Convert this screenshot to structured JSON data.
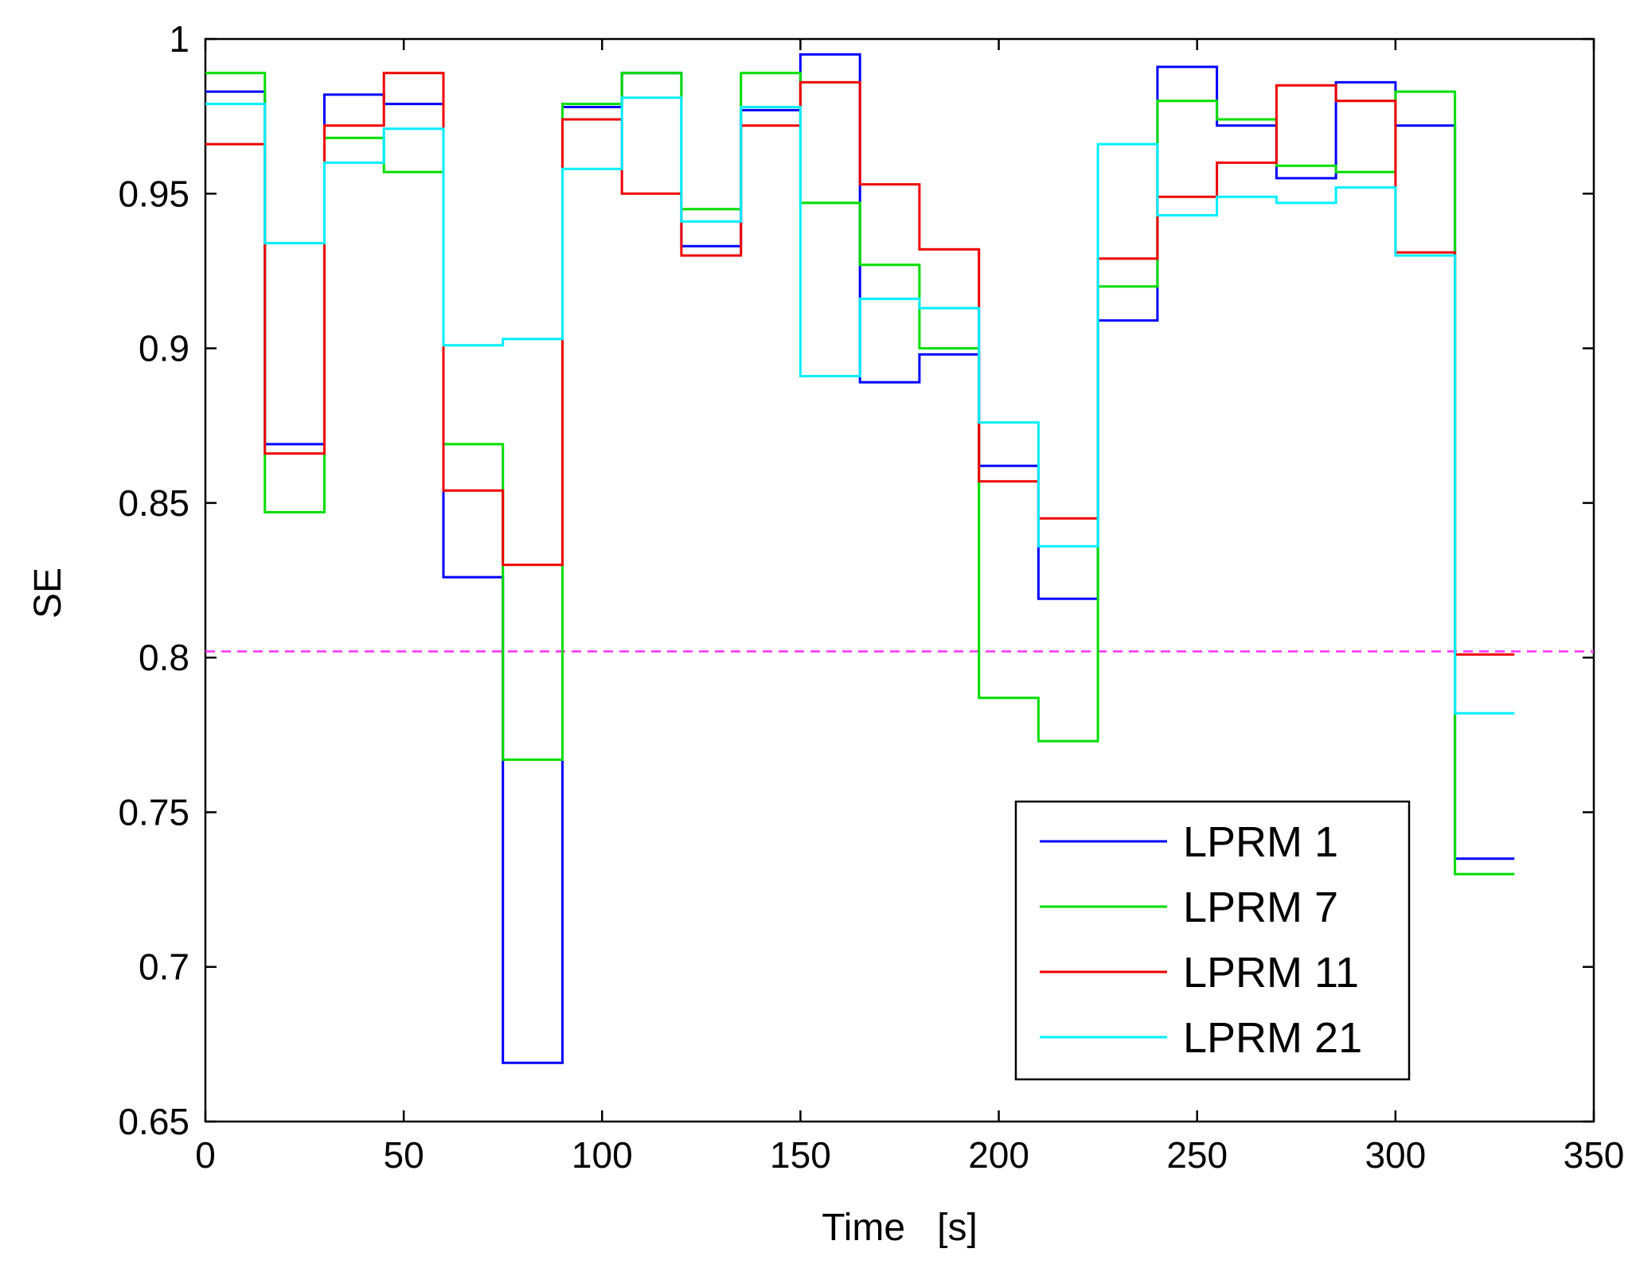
{
  "chart_data": {
    "type": "line",
    "step": true,
    "title": "",
    "xlabel": "Time   [s]",
    "ylabel": "SE",
    "xlim": [
      0,
      350
    ],
    "ylim": [
      0.65,
      1
    ],
    "xticks": [
      0,
      50,
      100,
      150,
      200,
      250,
      300,
      350
    ],
    "xtick_labels": [
      "0",
      "50",
      "100",
      "150",
      "200",
      "250",
      "300",
      "350"
    ],
    "yticks": [
      0.65,
      0.7,
      0.75,
      0.8,
      0.85,
      0.9,
      0.95,
      1
    ],
    "ytick_labels": [
      "0.65",
      "0.7",
      "0.75",
      "0.8",
      "0.85",
      "0.9",
      "0.95",
      "1"
    ],
    "grid": false,
    "legend_position": "bottom-right",
    "x_edges": [
      0,
      15,
      30,
      45,
      60,
      75,
      90,
      105,
      120,
      135,
      150,
      165,
      180,
      195,
      210,
      225,
      240,
      255,
      270,
      285,
      300,
      315,
      330
    ],
    "series": [
      {
        "name": "LPRM 1",
        "color": "#0000ff",
        "values": [
          0.983,
          0.869,
          0.982,
          0.979,
          0.826,
          0.669,
          0.978,
          0.989,
          0.933,
          0.977,
          0.995,
          0.889,
          0.898,
          0.862,
          0.819,
          0.909,
          0.991,
          0.972,
          0.955,
          0.986,
          0.972,
          0.735
        ]
      },
      {
        "name": "LPRM 7",
        "color": "#00dd00",
        "values": [
          0.989,
          0.847,
          0.968,
          0.957,
          0.869,
          0.767,
          0.979,
          0.989,
          0.945,
          0.989,
          0.947,
          0.927,
          0.9,
          0.787,
          0.773,
          0.92,
          0.98,
          0.974,
          0.959,
          0.957,
          0.983,
          0.73
        ]
      },
      {
        "name": "LPRM 11",
        "color": "#ee0000",
        "values": [
          0.966,
          0.866,
          0.972,
          0.989,
          0.854,
          0.83,
          0.974,
          0.95,
          0.93,
          0.972,
          0.986,
          0.953,
          0.932,
          0.857,
          0.845,
          0.929,
          0.949,
          0.96,
          0.985,
          0.98,
          0.931,
          0.801
        ]
      },
      {
        "name": "LPRM 21",
        "color": "#00eeff",
        "values": [
          0.979,
          0.934,
          0.96,
          0.971,
          0.901,
          0.903,
          0.958,
          0.981,
          0.941,
          0.978,
          0.891,
          0.916,
          0.913,
          0.876,
          0.836,
          0.966,
          0.943,
          0.949,
          0.947,
          0.952,
          0.93,
          0.782
        ]
      }
    ],
    "reference_lines": [
      {
        "y": 0.802,
        "color": "#ff33ff",
        "style": "dashed"
      }
    ]
  }
}
